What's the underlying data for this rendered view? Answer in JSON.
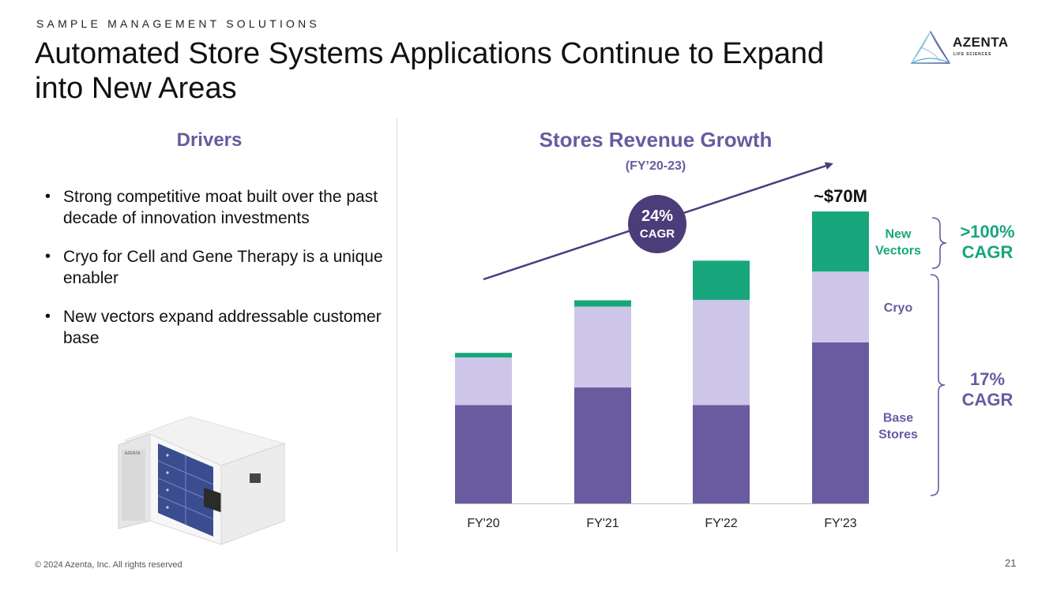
{
  "header": {
    "eyebrow": "SAMPLE MANAGEMENT SOLUTIONS",
    "title": "Automated Store Systems Applications Continue to Expand into New Areas"
  },
  "logo": {
    "word": "AZENTA",
    "sub": "LIFE SCIENCES"
  },
  "drivers": {
    "heading": "Drivers",
    "bullets": [
      "Strong competitive moat built over the past decade of innovation investments",
      "Cryo for Cell and Gene Therapy is a unique enabler",
      "New vectors expand addressable customer base"
    ]
  },
  "product_image": {
    "label": "AZENTA"
  },
  "chart_data": {
    "type": "bar",
    "stacked": true,
    "title": "Stores Revenue Growth",
    "subtitle": "(FY’20-23)",
    "categories": [
      "FY'20",
      "FY'21",
      "FY'22",
      "FY'23"
    ],
    "ylim": [
      0,
      70
    ],
    "series": [
      {
        "name": "Base Stores",
        "label": "Base\nStores",
        "color": "#6a5aa0",
        "values": [
          23.6,
          27.8,
          23.6,
          38.6
        ]
      },
      {
        "name": "Cryo",
        "label": "Cryo",
        "color": "#cdc6e8",
        "values": [
          11.4,
          19.4,
          25.2,
          17.0
        ]
      },
      {
        "name": "New Vectors",
        "label": "New\nVectors",
        "color": "#18a67c",
        "values": [
          1.1,
          1.5,
          9.4,
          14.4
        ]
      }
    ],
    "top_label": "~$70M",
    "growth_badge": {
      "value": "24%",
      "label": "CAGR",
      "color": "#4a3d7a"
    },
    "callouts": [
      {
        "value": ">100%",
        "label": "CAGR",
        "color": "#18a67c",
        "series": "New Vectors"
      },
      {
        "value": "17%",
        "label": "CAGR",
        "color": "#6a5aa0",
        "series": "Base Stores + Cryo"
      }
    ]
  },
  "footer": {
    "copyright": "© 2024 Azenta, Inc.  All rights reserved",
    "page_number": "21"
  }
}
